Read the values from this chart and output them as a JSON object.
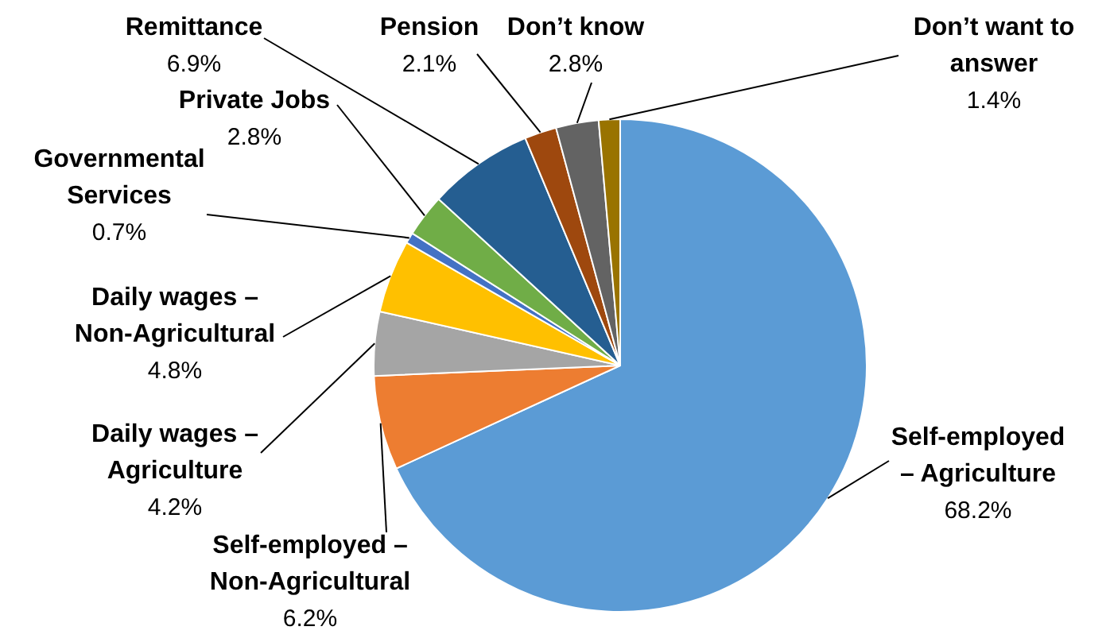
{
  "chart_data": {
    "type": "pie",
    "categories": [
      "Self-employed – Agriculture",
      "Self-employed – Non-Agricultural",
      "Daily wages – Agriculture",
      "Daily wages – Non-Agricultural",
      "Governmental Services",
      "Private Jobs",
      "Remittance",
      "Pension",
      "Don’t know",
      "Don’t want to answer"
    ],
    "values": [
      68.2,
      6.2,
      4.2,
      4.8,
      0.7,
      2.8,
      6.9,
      2.1,
      2.8,
      1.4
    ],
    "colors": [
      "#5b9bd5",
      "#ed7d31",
      "#a5a5a5",
      "#ffc000",
      "#4472c4",
      "#70ad47",
      "#255e91",
      "#9e480e",
      "#636363",
      "#997300"
    ],
    "value_labels": [
      "68.2%",
      "6.2%",
      "4.2%",
      "4.8%",
      "0.7%",
      "2.8%",
      "6.9%",
      "2.1%",
      "2.8%",
      "1.4%"
    ]
  }
}
